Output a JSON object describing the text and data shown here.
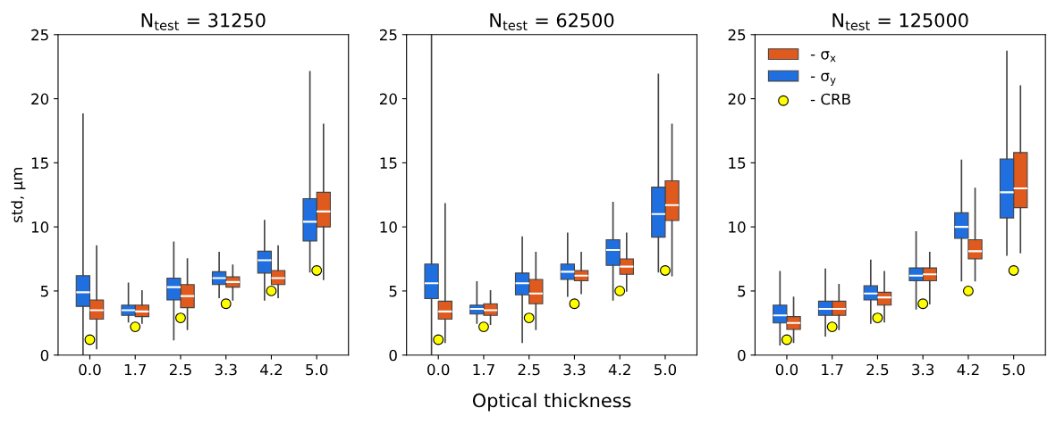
{
  "chart_data": [
    {
      "type": "box",
      "title": "N$_{test}$ = 31250",
      "ylabel": "std, μm",
      "categories": [
        "0.0",
        "1.7",
        "2.5",
        "3.3",
        "4.2",
        "5.0"
      ],
      "ylim": [
        0,
        25
      ],
      "yticks": [
        0,
        5,
        10,
        15,
        20,
        25
      ],
      "grid": false,
      "series": [
        {
          "color": "#e05a1e",
          "boxes": [
            {
              "low": 0.5,
              "q1": 2.8,
              "median": 3.5,
              "q3": 4.3,
              "high": 8.5
            },
            {
              "low": 2.5,
              "q1": 3.0,
              "median": 3.4,
              "q3": 3.9,
              "high": 5.0
            },
            {
              "low": 2.0,
              "q1": 3.7,
              "median": 4.6,
              "q3": 5.5,
              "high": 7.5
            },
            {
              "low": 4.3,
              "q1": 5.3,
              "median": 5.7,
              "q3": 6.1,
              "high": 7.0
            },
            {
              "low": 4.5,
              "q1": 5.5,
              "median": 6.0,
              "q3": 6.6,
              "high": 8.5
            },
            {
              "low": 5.9,
              "q1": 10.0,
              "median": 11.2,
              "q3": 12.7,
              "high": 18.0
            }
          ]
        },
        {
          "color": "#1f6fe0",
          "boxes": [
            {
              "low": 0.0,
              "q1": 3.8,
              "median": 4.9,
              "q3": 6.2,
              "high": 18.8
            },
            {
              "low": 2.6,
              "q1": 3.1,
              "median": 3.5,
              "q3": 3.9,
              "high": 5.6
            },
            {
              "low": 1.2,
              "q1": 4.3,
              "median": 5.3,
              "q3": 6.0,
              "high": 8.8
            },
            {
              "low": 4.5,
              "q1": 5.5,
              "median": 6.0,
              "q3": 6.5,
              "high": 8.0
            },
            {
              "low": 4.3,
              "q1": 6.4,
              "median": 7.4,
              "q3": 8.1,
              "high": 10.5
            },
            {
              "low": 6.5,
              "q1": 8.9,
              "median": 10.4,
              "q3": 12.2,
              "high": 22.1
            }
          ]
        },
        {
          "type": "scatter",
          "color": "#ffff00",
          "marker": "circle",
          "x": [
            "0.0",
            "1.7",
            "2.5",
            "3.3",
            "4.2",
            "5.0"
          ],
          "values": [
            1.2,
            2.2,
            2.9,
            4.0,
            5.0,
            6.6
          ]
        }
      ]
    },
    {
      "type": "box",
      "title": "N$_{test}$ = 62500",
      "xlabel": "Optical thickness",
      "categories": [
        "0.0",
        "1.7",
        "2.5",
        "3.3",
        "4.2",
        "5.0"
      ],
      "ylim": [
        0,
        25
      ],
      "yticks": [
        0,
        5,
        10,
        15,
        20,
        25
      ],
      "grid": false,
      "series": [
        {
          "color": "#e05a1e",
          "boxes": [
            {
              "low": 1.0,
              "q1": 2.8,
              "median": 3.4,
              "q3": 4.2,
              "high": 11.8
            },
            {
              "low": 2.4,
              "q1": 3.1,
              "median": 3.5,
              "q3": 4.0,
              "high": 5.0
            },
            {
              "low": 2.0,
              "q1": 4.0,
              "median": 4.8,
              "q3": 5.9,
              "high": 8.0
            },
            {
              "low": 4.8,
              "q1": 5.8,
              "median": 6.2,
              "q3": 6.6,
              "high": 8.0
            },
            {
              "low": 5.0,
              "q1": 6.3,
              "median": 6.9,
              "q3": 7.5,
              "high": 9.5
            },
            {
              "low": 6.2,
              "q1": 10.5,
              "median": 11.7,
              "q3": 13.6,
              "high": 18.0
            }
          ]
        },
        {
          "color": "#1f6fe0",
          "boxes": [
            {
              "low": 0.0,
              "q1": 4.4,
              "median": 5.6,
              "q3": 7.1,
              "high": 25.0
            },
            {
              "low": 2.5,
              "q1": 3.2,
              "median": 3.6,
              "q3": 3.9,
              "high": 5.7
            },
            {
              "low": 1.0,
              "q1": 4.7,
              "median": 5.6,
              "q3": 6.4,
              "high": 9.2
            },
            {
              "low": 4.6,
              "q1": 5.9,
              "median": 6.5,
              "q3": 7.1,
              "high": 9.5
            },
            {
              "low": 4.3,
              "q1": 7.0,
              "median": 8.2,
              "q3": 9.0,
              "high": 11.9
            },
            {
              "low": 6.5,
              "q1": 9.2,
              "median": 11.0,
              "q3": 13.1,
              "high": 21.9
            }
          ]
        },
        {
          "type": "scatter",
          "color": "#ffff00",
          "marker": "circle",
          "x": [
            "0.0",
            "1.7",
            "2.5",
            "3.3",
            "4.2",
            "5.0"
          ],
          "values": [
            1.2,
            2.2,
            2.9,
            4.0,
            5.0,
            6.6
          ]
        }
      ]
    },
    {
      "type": "box",
      "title": "N$_{test}$ = 125000",
      "categories": [
        "0.0",
        "1.7",
        "2.5",
        "3.3",
        "4.2",
        "5.0"
      ],
      "ylim": [
        0,
        25
      ],
      "yticks": [
        0,
        5,
        10,
        15,
        20,
        25
      ],
      "grid": false,
      "legend": "top left",
      "series": [
        {
          "name": "- σ$_{x}$",
          "color": "#e05a1e",
          "boxes": [
            {
              "low": 1.0,
              "q1": 2.0,
              "median": 2.5,
              "q3": 3.0,
              "high": 4.5
            },
            {
              "low": 2.0,
              "q1": 3.1,
              "median": 3.6,
              "q3": 4.2,
              "high": 5.5
            },
            {
              "low": 2.6,
              "q1": 3.9,
              "median": 4.5,
              "q3": 4.9,
              "high": 6.5
            },
            {
              "low": 4.0,
              "q1": 5.8,
              "median": 6.3,
              "q3": 6.8,
              "high": 8.0
            },
            {
              "low": 5.8,
              "q1": 7.5,
              "median": 8.1,
              "q3": 9.0,
              "high": 13.0
            },
            {
              "low": 8.0,
              "q1": 11.5,
              "median": 13.0,
              "q3": 15.8,
              "high": 21.0
            }
          ]
        },
        {
          "name": "- σ$_{y}$",
          "color": "#1f6fe0",
          "boxes": [
            {
              "low": 0.8,
              "q1": 2.5,
              "median": 3.1,
              "q3": 3.9,
              "high": 6.5
            },
            {
              "low": 1.5,
              "q1": 3.1,
              "median": 3.6,
              "q3": 4.2,
              "high": 6.7
            },
            {
              "low": 2.5,
              "q1": 4.3,
              "median": 4.8,
              "q3": 5.4,
              "high": 7.4
            },
            {
              "low": 3.6,
              "q1": 5.8,
              "median": 6.2,
              "q3": 6.8,
              "high": 9.6
            },
            {
              "low": 5.8,
              "q1": 9.1,
              "median": 10.0,
              "q3": 11.1,
              "high": 15.2
            },
            {
              "low": 7.8,
              "q1": 10.7,
              "median": 12.7,
              "q3": 15.3,
              "high": 23.7
            }
          ]
        },
        {
          "type": "scatter",
          "name": "- CRB",
          "color": "#ffff00",
          "marker": "circle",
          "x": [
            "0.0",
            "1.7",
            "2.5",
            "3.3",
            "4.2",
            "5.0"
          ],
          "values": [
            1.2,
            2.2,
            2.9,
            4.0,
            5.0,
            6.6
          ]
        }
      ]
    }
  ]
}
